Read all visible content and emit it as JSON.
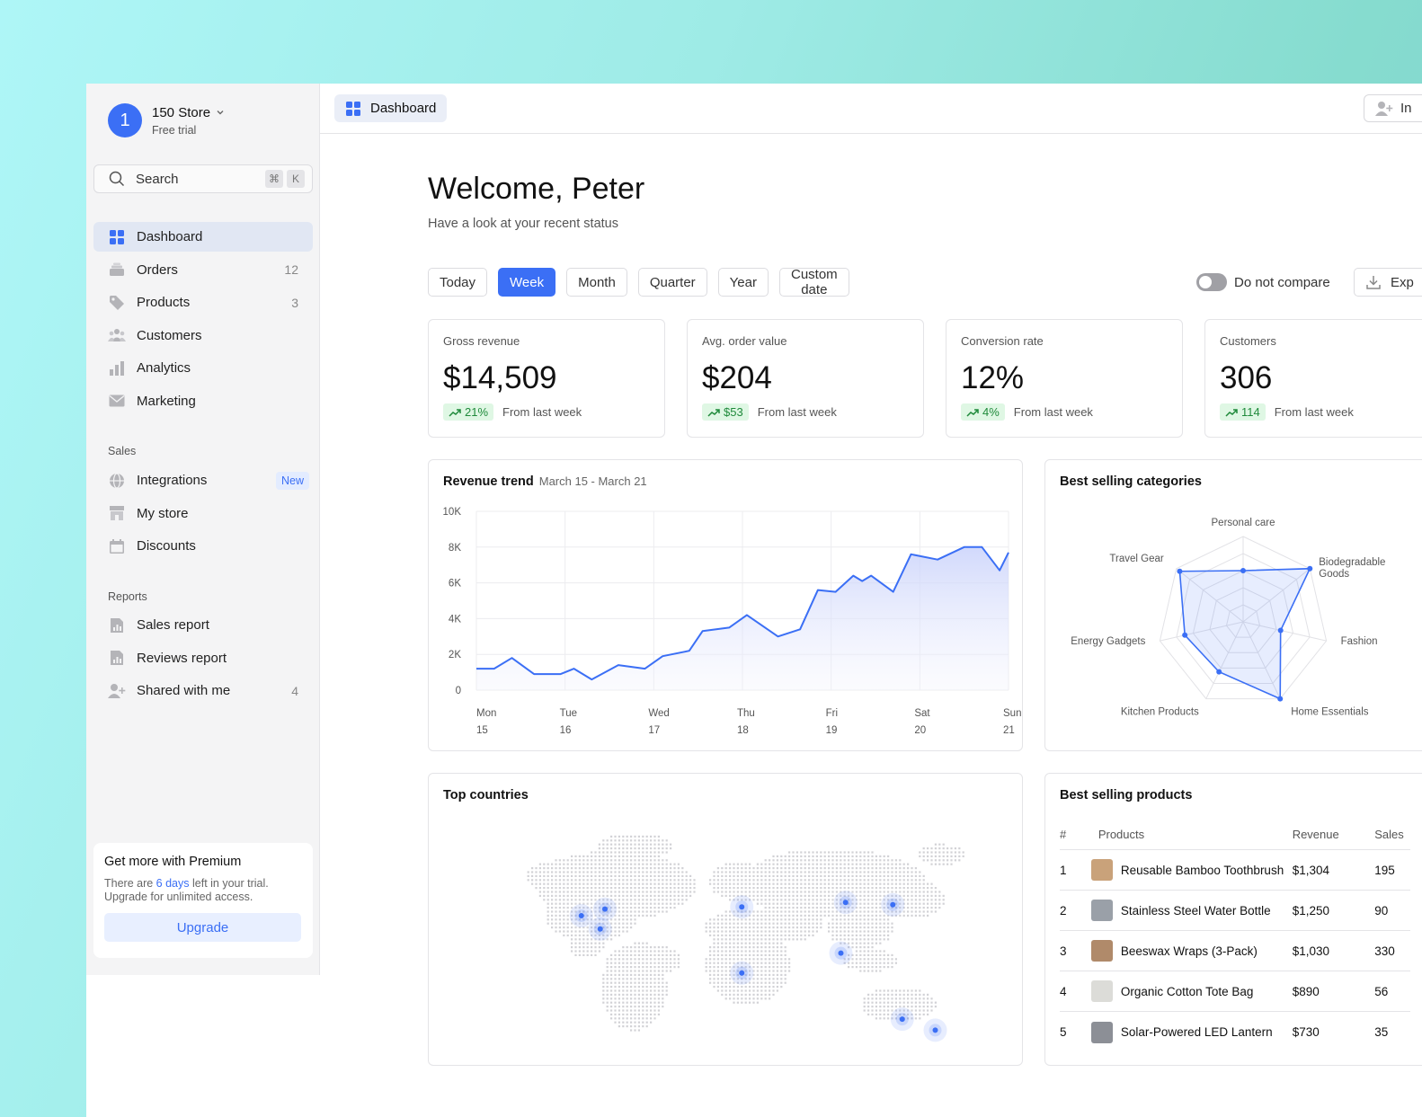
{
  "store": {
    "initial": "1",
    "name": "150 Store",
    "plan": "Free trial"
  },
  "search": {
    "label": "Search",
    "key1": "⌘",
    "key2": "K"
  },
  "nav": [
    {
      "label": "Dashboard",
      "count": ""
    },
    {
      "label": "Orders",
      "count": "12"
    },
    {
      "label": "Products",
      "count": "3"
    },
    {
      "label": "Customers",
      "count": ""
    },
    {
      "label": "Analytics",
      "count": ""
    },
    {
      "label": "Marketing",
      "count": ""
    }
  ],
  "sales": {
    "title": "Sales",
    "items": [
      {
        "label": "Integrations",
        "badge": "New"
      },
      {
        "label": "My store"
      },
      {
        "label": "Discounts"
      }
    ]
  },
  "reports": {
    "title": "Reports",
    "items": [
      {
        "label": "Sales report",
        "count": ""
      },
      {
        "label": "Reviews report",
        "count": ""
      },
      {
        "label": "Shared with me",
        "count": "4"
      }
    ]
  },
  "premium": {
    "title": "Get more with Premium",
    "text_before": "There are ",
    "days": "6 days",
    "text_after": " left in your trial. Upgrade for unlimited access.",
    "button": "Upgrade"
  },
  "topbar": {
    "tab": "Dashboard",
    "invite": "In"
  },
  "welcome": {
    "title": "Welcome, Peter",
    "subtitle": "Have a look at your recent status"
  },
  "filters": [
    "Today",
    "Week",
    "Month",
    "Quarter",
    "Year",
    "Custom date"
  ],
  "active_filter": "Week",
  "compare_label": "Do not compare",
  "export_label": "Exp",
  "kpis": [
    {
      "label": "Gross revenue",
      "value": "$14,509",
      "delta": "21%",
      "note": "From last week"
    },
    {
      "label": "Avg. order value",
      "value": "$204",
      "delta": "$53",
      "note": "From last week"
    },
    {
      "label": "Conversion rate",
      "value": "12%",
      "delta": "4%",
      "note": "From last week"
    },
    {
      "label": "Customers",
      "value": "306",
      "delta": "114",
      "note": "From last week"
    }
  ],
  "revenue": {
    "title": "Revenue trend",
    "range": "March 15 - March 21"
  },
  "categories": {
    "title": "Best selling categories"
  },
  "countries": {
    "title": "Top countries"
  },
  "products": {
    "title": "Best selling products",
    "headers": [
      "#",
      "Products",
      "Revenue",
      "Sales"
    ],
    "rows": [
      {
        "rank": "1",
        "name": "Reusable Bamboo Toothbrush",
        "revenue": "$1,304",
        "sales": "195",
        "color": "#c9a27a"
      },
      {
        "rank": "2",
        "name": "Stainless Steel Water Bottle",
        "revenue": "$1,250",
        "sales": "90",
        "color": "#9aa0a8"
      },
      {
        "rank": "3",
        "name": "Beeswax Wraps (3-Pack)",
        "revenue": "$1,030",
        "sales": "330",
        "color": "#b08a6a"
      },
      {
        "rank": "4",
        "name": "Organic Cotton Tote Bag",
        "revenue": "$890",
        "sales": "56",
        "color": "#dcdcd8"
      },
      {
        "rank": "5",
        "name": "Solar-Powered LED Lantern",
        "revenue": "$730",
        "sales": "35",
        "color": "#8c8f96"
      }
    ]
  },
  "colors": {
    "accent": "#3b6ff5",
    "positive": "#1f8a3b"
  },
  "chart_data": [
    {
      "type": "area",
      "title": "Revenue trend",
      "subtitle": "March 15 - March 21",
      "x_ticks": [
        {
          "day": "Mon",
          "date": "15"
        },
        {
          "day": "Tue",
          "date": "16"
        },
        {
          "day": "Wed",
          "date": "17"
        },
        {
          "day": "Thu",
          "date": "18"
        },
        {
          "day": "Fri",
          "date": "19"
        },
        {
          "day": "Sat",
          "date": "20"
        },
        {
          "day": "Sun",
          "date": "21"
        }
      ],
      "y_ticks": [
        "0",
        "2K",
        "4K",
        "6K",
        "8K",
        "10K"
      ],
      "ylim": [
        0,
        10000
      ],
      "xlim": [
        0,
        6
      ],
      "grid": true,
      "series": [
        {
          "x": [
            0,
            0.2,
            0.4,
            0.65,
            0.95,
            1.1,
            1.3,
            1.6,
            1.9,
            2.1,
            2.4,
            2.55,
            2.85,
            3.05,
            3.4,
            3.65,
            3.85,
            4.05,
            4.25,
            4.35,
            4.45,
            4.7,
            4.9,
            5.2,
            5.5,
            5.7,
            5.9,
            6.0
          ],
          "y": [
            1200,
            1200,
            1800,
            900,
            900,
            1200,
            600,
            1400,
            1200,
            1900,
            2200,
            3300,
            3500,
            4200,
            3000,
            3400,
            5600,
            5500,
            6400,
            6100,
            6400,
            5500,
            7600,
            7300,
            8000,
            8000,
            6700,
            7700
          ]
        }
      ]
    },
    {
      "type": "radar",
      "title": "Best selling categories",
      "categories": [
        "Personal care",
        "Biodegradable Goods",
        "Fashion",
        "Home Essentials",
        "Kitchen Products",
        "Energy Gadgets",
        "Travel Gear"
      ],
      "values": [
        0.6,
        1.0,
        0.45,
        1.0,
        0.65,
        0.7,
        0.95
      ],
      "max": 1.0
    }
  ]
}
